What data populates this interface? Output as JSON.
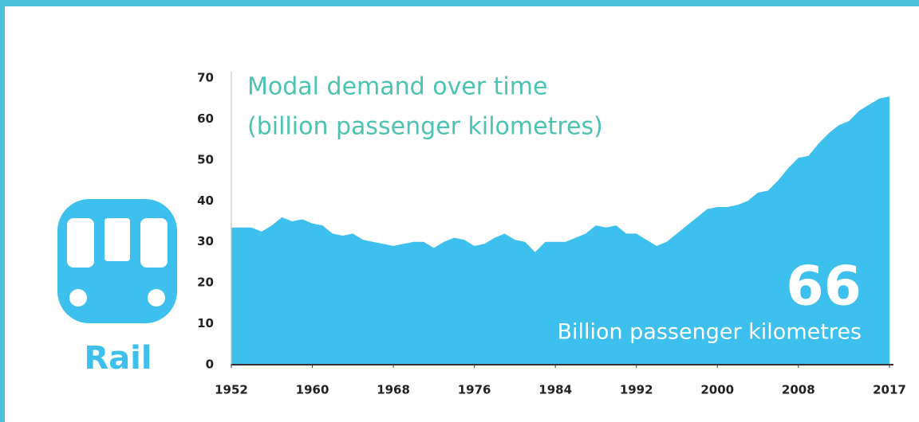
{
  "icon": {
    "label": "Rail"
  },
  "chart_data": {
    "type": "area",
    "title": "Modal demand over time",
    "subtitle": "(billion passenger kilometres)",
    "annotations": [
      "66",
      "Billion passenger kilometres"
    ],
    "color": "#3ec0ee",
    "x": [
      1952,
      1953,
      1954,
      1955,
      1956,
      1957,
      1958,
      1959,
      1960,
      1961,
      1962,
      1963,
      1964,
      1965,
      1966,
      1967,
      1968,
      1969,
      1970,
      1971,
      1972,
      1973,
      1974,
      1975,
      1976,
      1977,
      1978,
      1979,
      1980,
      1981,
      1982,
      1983,
      1984,
      1985,
      1986,
      1987,
      1988,
      1989,
      1990,
      1991,
      1992,
      1993,
      1994,
      1995,
      1996,
      1997,
      1998,
      1999,
      2000,
      2001,
      2002,
      2003,
      2004,
      2005,
      2006,
      2007,
      2008,
      2009,
      2010,
      2011,
      2012,
      2013,
      2014,
      2015,
      2016,
      2017
    ],
    "values": [
      33.5,
      33.5,
      33.5,
      32.5,
      34,
      36,
      35,
      35.5,
      34.5,
      34,
      32,
      31.5,
      32,
      30.5,
      30,
      29.5,
      29,
      29.5,
      30,
      30,
      28.5,
      30,
      31,
      30.5,
      29,
      29.5,
      31,
      32,
      30.5,
      30,
      27.5,
      30,
      30,
      30,
      31,
      32,
      34,
      33.5,
      34,
      32,
      32,
      30.5,
      29,
      30,
      32,
      34,
      36,
      38,
      38.5,
      38.5,
      39,
      40,
      42,
      42.5,
      45,
      48,
      50.5,
      51,
      54,
      56.5,
      58.5,
      59.5,
      62,
      63.5,
      65,
      65.5
    ],
    "xlim": [
      1952,
      2017
    ],
    "xticks": [
      1952,
      1960,
      1968,
      1976,
      1984,
      1992,
      2000,
      2008,
      2017
    ],
    "ylim": [
      0,
      70
    ],
    "yticks": [
      0,
      10,
      20,
      30,
      40,
      50,
      60,
      70
    ],
    "grid": false
  }
}
